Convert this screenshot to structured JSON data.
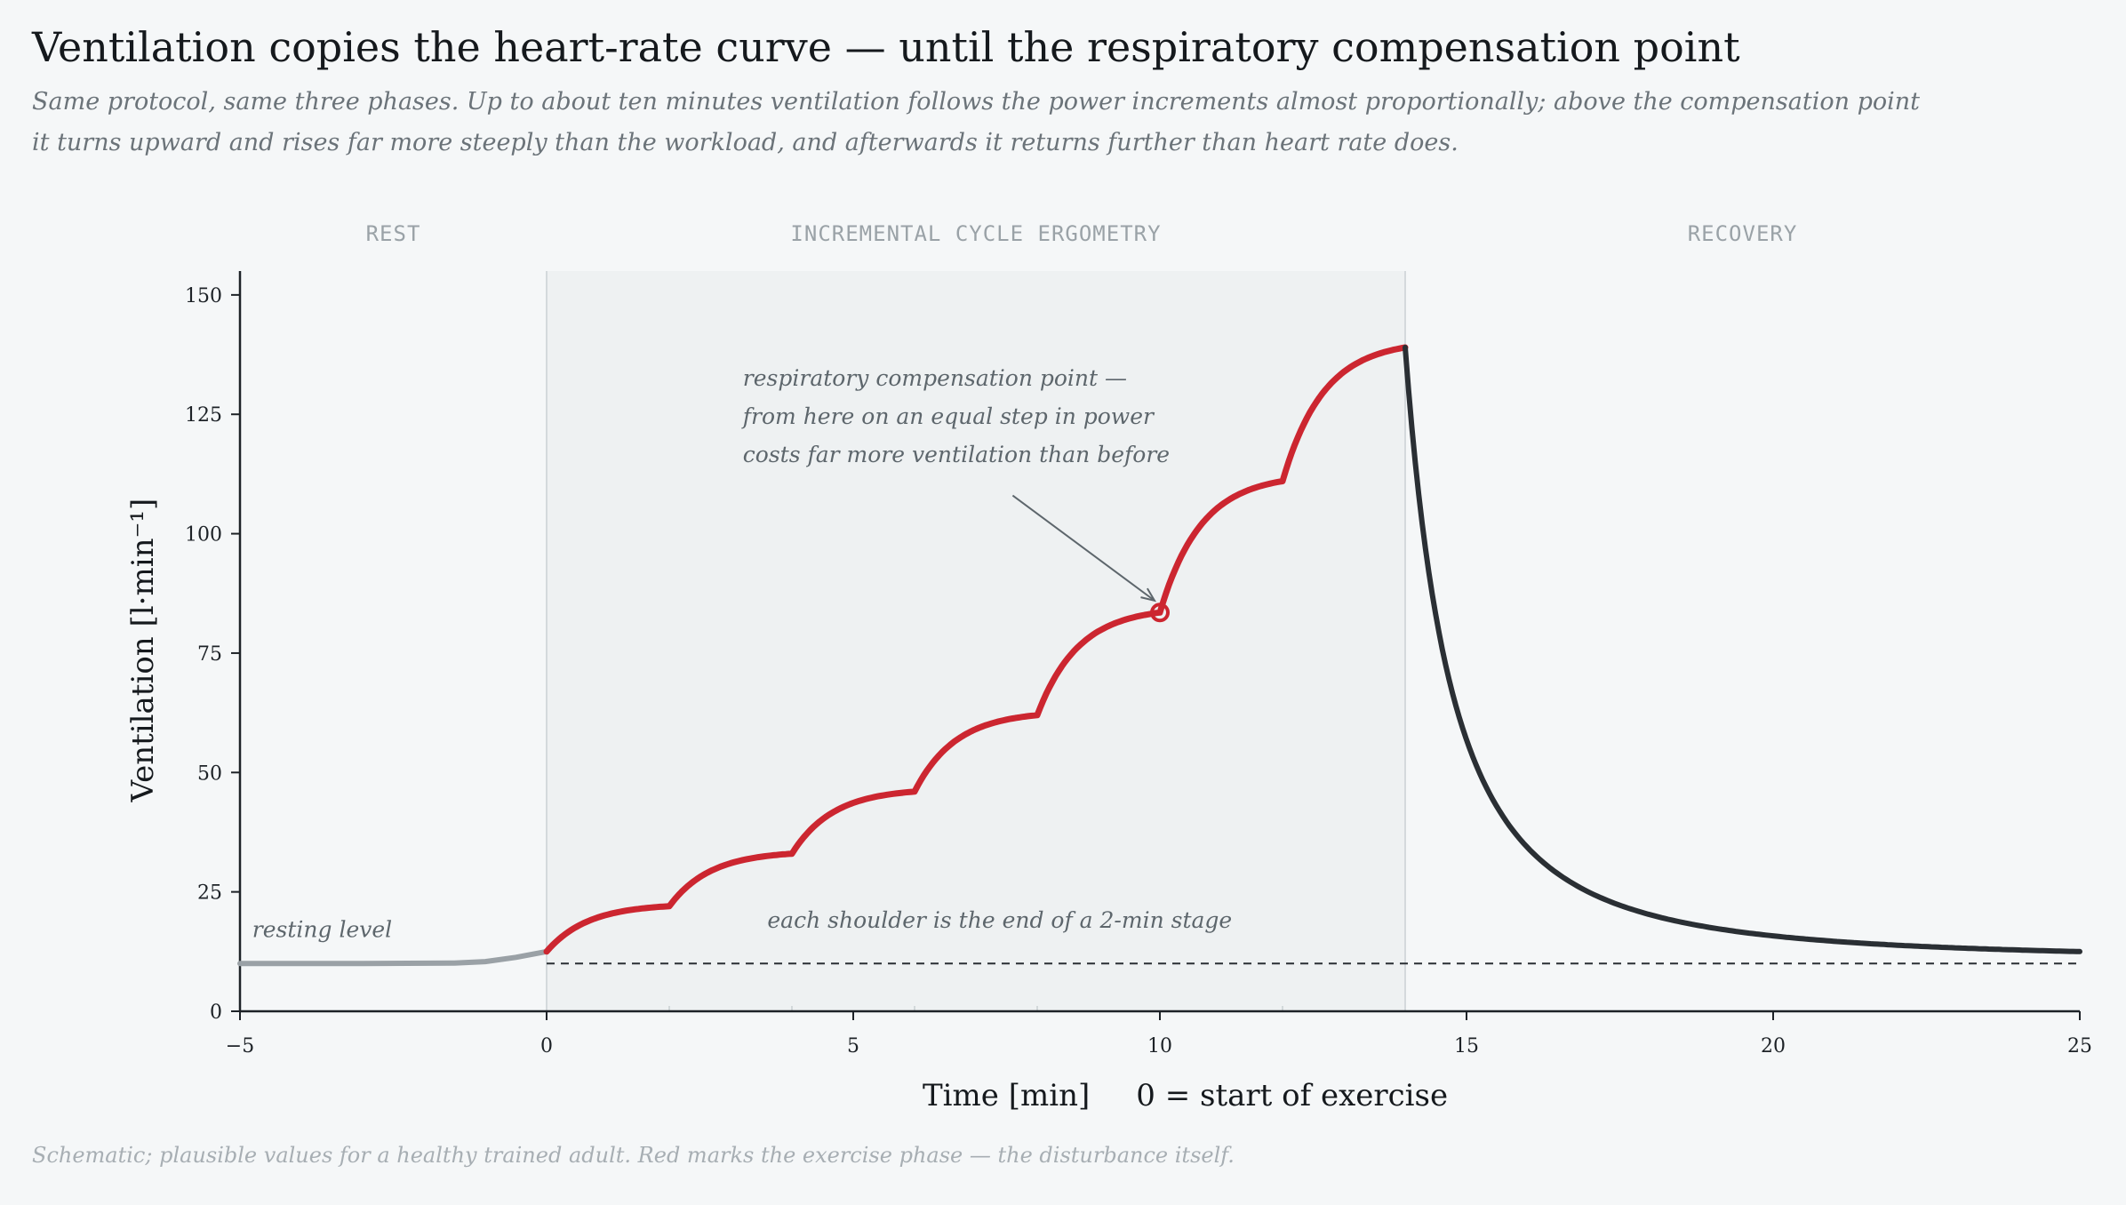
{
  "header": {
    "title": "Ventilation copies the heart-rate curve — until the respiratory compensation point",
    "subtitle": "Same protocol, same three phases. Up to about ten minutes ventilation follows the power increments almost proportionally; above the compensation point it turns upward and rises far more steeply than the workload, and afterwards it returns further than heart rate does."
  },
  "footnote": "Schematic; plausible values for a healthy trained adult. Red marks the exercise phase — the disturbance itself.",
  "colors": {
    "exercise": "#cc2630",
    "recovery": "#2a2f34",
    "rest": "#9aa1a6",
    "phase_band": "#eef1f2",
    "baseline": "#2a2f34",
    "annotation": "#5d666c"
  },
  "chart_data": {
    "type": "line",
    "title": "Ventilation copies the heart-rate curve — until the respiratory compensation point",
    "xlabel": "Time  [min]",
    "xlabel_note": "0 = start of exercise",
    "ylabel": "Ventilation  [l·min⁻¹]",
    "xlim": [
      -5,
      25
    ],
    "ylim": [
      0,
      155
    ],
    "xticks": [
      -5,
      0,
      5,
      10,
      15,
      20,
      25
    ],
    "xtick_labels": [
      "−5",
      "0",
      "5",
      "10",
      "15",
      "20",
      "25"
    ],
    "yticks": [
      0,
      25,
      50,
      75,
      100,
      125,
      150
    ],
    "grid": false,
    "phases": [
      {
        "label": "REST",
        "x": [
          -5,
          0
        ]
      },
      {
        "label": "INCREMENTAL CYCLE ERGOMETRY",
        "x": [
          0,
          14
        ]
      },
      {
        "label": "RECOVERY",
        "x": [
          14,
          25
        ]
      }
    ],
    "baseline": {
      "y": 10,
      "style": "dashed",
      "label": "resting level"
    },
    "series": [
      {
        "phase": "rest",
        "points": [
          [
            -5,
            10
          ],
          [
            -3,
            10
          ],
          [
            -1.5,
            10.1
          ],
          [
            -1,
            10.4
          ],
          [
            -0.5,
            11.3
          ],
          [
            0,
            12.5
          ]
        ]
      },
      {
        "phase": "exercise",
        "stages": [
          {
            "t0": 0,
            "t1": 2,
            "v0": 12.5,
            "v1": 22
          },
          {
            "t0": 2,
            "t1": 4,
            "v0": 22,
            "v1": 33
          },
          {
            "t0": 4,
            "t1": 6,
            "v0": 33,
            "v1": 46
          },
          {
            "t0": 6,
            "t1": 8,
            "v0": 46,
            "v1": 62
          },
          {
            "t0": 8,
            "t1": 10,
            "v0": 62,
            "v1": 83.5
          },
          {
            "t0": 10,
            "t1": 12,
            "v0": 83.5,
            "v1": 111
          },
          {
            "t0": 12,
            "t1": 14,
            "v0": 111,
            "v1": 139
          }
        ]
      },
      {
        "phase": "recovery",
        "start": [
          14,
          139
        ],
        "end": [
          25,
          12.5
        ]
      }
    ],
    "marker": {
      "x": 10,
      "y": 83.5
    },
    "annotations": [
      {
        "text": [
          "respiratory compensation point —",
          "from here on an equal step in power",
          "costs far more ventilation than before"
        ],
        "x": 3.2,
        "y": 131,
        "arrow_from": [
          7.6,
          108
        ],
        "arrow_to": [
          10,
          84.5
        ]
      },
      {
        "text": "each shoulder is the end of a 2-min stage",
        "x": 3.6,
        "y": 17.5
      },
      {
        "text": "resting level",
        "x": -4.8,
        "y": 15.5
      }
    ]
  }
}
